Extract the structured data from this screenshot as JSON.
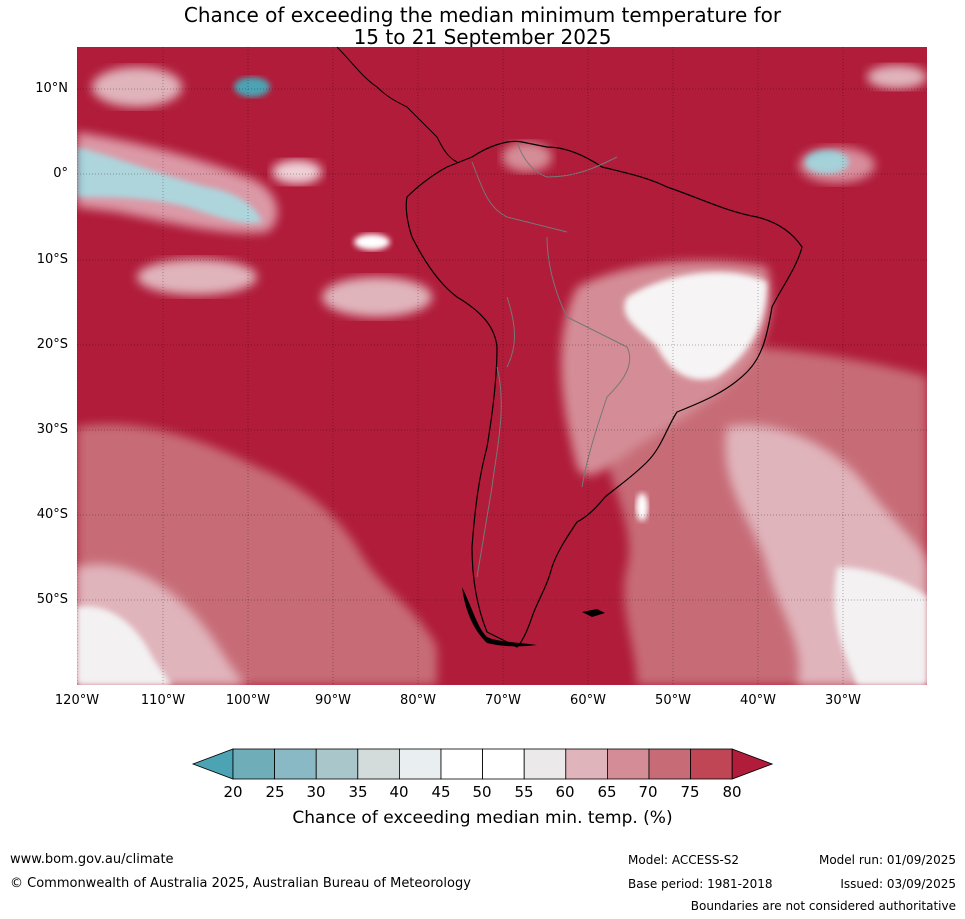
{
  "title": {
    "line1": "Chance of exceeding the median minimum temperature for",
    "line2": "15 to 21 September 2025"
  },
  "lat_ticks": [
    "10°N",
    "0°",
    "10°S",
    "20°S",
    "30°S",
    "40°S",
    "50°S"
  ],
  "lon_ticks": [
    "120°W",
    "110°W",
    "100°W",
    "90°W",
    "80°W",
    "70°W",
    "60°W",
    "50°W",
    "40°W",
    "30°W"
  ],
  "colorbar": {
    "ticks": [
      "20",
      "25",
      "30",
      "35",
      "40",
      "45",
      "50",
      "55",
      "60",
      "65",
      "70",
      "75",
      "80"
    ],
    "colors": [
      "#4ba3b3",
      "#6fadb9",
      "#8ab9c6",
      "#a9c6cb",
      "#d3dbdb",
      "#e9eff1",
      "#ffffff",
      "#ffffff",
      "#ebe9ea",
      "#e0b4bb",
      "#d48d96",
      "#c76c77",
      "#c04555",
      "#b01c3a"
    ],
    "title": "Chance of exceeding median min. temp. (%)"
  },
  "footer": {
    "url": "www.bom.gov.au/climate",
    "copyright": "© Commonwealth of Australia 2025, Australian Bureau of Meteorology",
    "model": "Model: ACCESS-S2",
    "base_period": "Base period: 1981-2018",
    "model_run": "Model run: 01/09/2025",
    "issued": "Issued: 03/09/2025",
    "disclaimer": "Boundaries are not considered authoritative"
  },
  "colors": {
    "high": "#b01c3a",
    "mid_high": "#c76c77",
    "pale": "#e0b4bb",
    "white": "#ffffff",
    "teal": "#4ba3b3"
  }
}
